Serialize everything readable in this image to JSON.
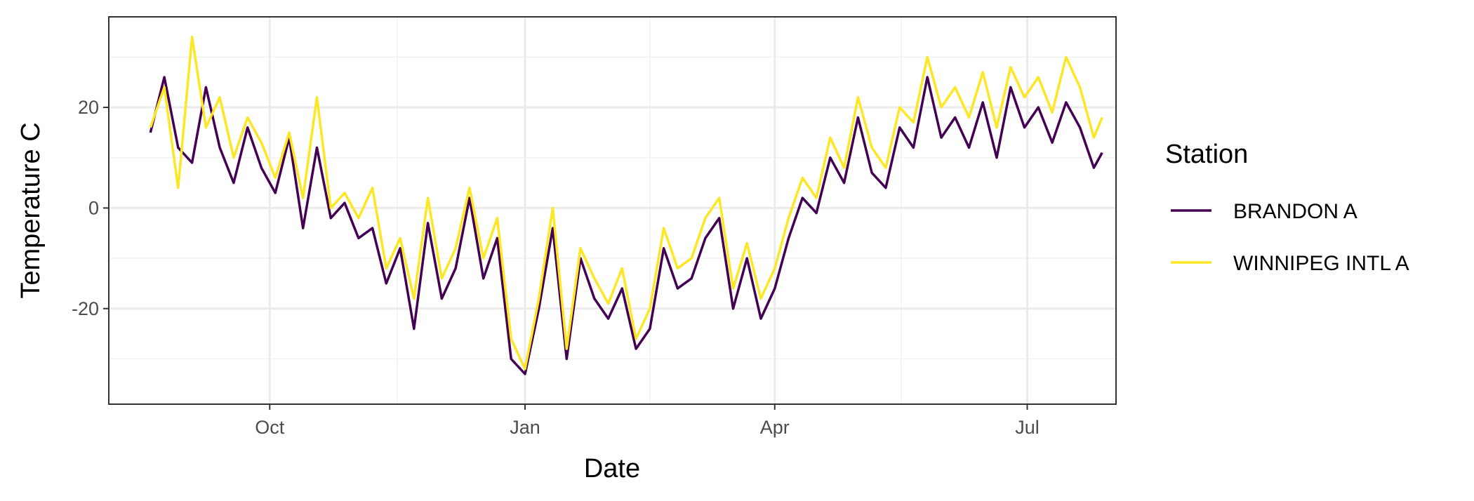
{
  "chart_data": {
    "type": "line",
    "xlabel": "Date",
    "ylabel": "Temperature C",
    "x_ticks": [
      {
        "label": "Oct",
        "date": "2020-10-01"
      },
      {
        "label": "Jan",
        "date": "2021-01-01"
      },
      {
        "label": "Apr",
        "date": "2021-04-01"
      },
      {
        "label": "Jul",
        "date": "2021-07-01"
      }
    ],
    "y_ticks": [
      -20,
      0,
      20
    ],
    "xlim": [
      "2020-08-04",
      "2021-08-02"
    ],
    "ylim": [
      -39,
      38
    ],
    "grid": true,
    "legend": {
      "title": "Station",
      "position": "right"
    },
    "series": [
      {
        "name": "BRANDON A",
        "color": "#440154",
        "x": [
          "2020-08-19",
          "2020-08-24",
          "2020-08-29",
          "2020-09-03",
          "2020-09-08",
          "2020-09-13",
          "2020-09-18",
          "2020-09-23",
          "2020-09-28",
          "2020-10-03",
          "2020-10-08",
          "2020-10-13",
          "2020-10-18",
          "2020-10-23",
          "2020-10-28",
          "2020-11-02",
          "2020-11-07",
          "2020-11-12",
          "2020-11-17",
          "2020-11-22",
          "2020-11-27",
          "2020-12-02",
          "2020-12-07",
          "2020-12-12",
          "2020-12-17",
          "2020-12-22",
          "2020-12-27",
          "2021-01-01",
          "2021-01-06",
          "2021-01-11",
          "2021-01-16",
          "2021-01-21",
          "2021-01-26",
          "2021-01-31",
          "2021-02-05",
          "2021-02-10",
          "2021-02-15",
          "2021-02-20",
          "2021-02-25",
          "2021-03-02",
          "2021-03-07",
          "2021-03-12",
          "2021-03-17",
          "2021-03-22",
          "2021-03-27",
          "2021-04-01",
          "2021-04-06",
          "2021-04-11",
          "2021-04-16",
          "2021-04-21",
          "2021-04-26",
          "2021-05-01",
          "2021-05-06",
          "2021-05-11",
          "2021-05-16",
          "2021-05-21",
          "2021-05-26",
          "2021-05-31",
          "2021-06-05",
          "2021-06-10",
          "2021-06-15",
          "2021-06-20",
          "2021-06-25",
          "2021-06-30",
          "2021-07-05",
          "2021-07-10",
          "2021-07-15",
          "2021-07-20",
          "2021-07-25",
          "2021-07-28"
        ],
        "y": [
          15,
          26,
          12,
          9,
          24,
          12,
          5,
          16,
          8,
          3,
          14,
          -4,
          12,
          -2,
          1,
          -6,
          -4,
          -15,
          -8,
          -24,
          -3,
          -18,
          -12,
          2,
          -14,
          -6,
          -30,
          -33,
          -20,
          -4,
          -30,
          -10,
          -18,
          -22,
          -16,
          -28,
          -24,
          -8,
          -16,
          -14,
          -6,
          -2,
          -20,
          -10,
          -22,
          -16,
          -6,
          2,
          -1,
          10,
          5,
          18,
          7,
          4,
          16,
          12,
          26,
          14,
          18,
          12,
          21,
          10,
          24,
          16,
          20,
          13,
          21,
          16,
          8,
          11
        ]
      },
      {
        "name": "WINNIPEG INTL A",
        "color": "#fde725",
        "x": [
          "2020-08-19",
          "2020-08-24",
          "2020-08-29",
          "2020-09-03",
          "2020-09-08",
          "2020-09-13",
          "2020-09-18",
          "2020-09-23",
          "2020-09-28",
          "2020-10-03",
          "2020-10-08",
          "2020-10-13",
          "2020-10-18",
          "2020-10-23",
          "2020-10-28",
          "2020-11-02",
          "2020-11-07",
          "2020-11-12",
          "2020-11-17",
          "2020-11-22",
          "2020-11-27",
          "2020-12-02",
          "2020-12-07",
          "2020-12-12",
          "2020-12-17",
          "2020-12-22",
          "2020-12-27",
          "2021-01-01",
          "2021-01-06",
          "2021-01-11",
          "2021-01-16",
          "2021-01-21",
          "2021-01-26",
          "2021-01-31",
          "2021-02-05",
          "2021-02-10",
          "2021-02-15",
          "2021-02-20",
          "2021-02-25",
          "2021-03-02",
          "2021-03-07",
          "2021-03-12",
          "2021-03-17",
          "2021-03-22",
          "2021-03-27",
          "2021-04-01",
          "2021-04-06",
          "2021-04-11",
          "2021-04-16",
          "2021-04-21",
          "2021-04-26",
          "2021-05-01",
          "2021-05-06",
          "2021-05-11",
          "2021-05-16",
          "2021-05-21",
          "2021-05-26",
          "2021-05-31",
          "2021-06-05",
          "2021-06-10",
          "2021-06-15",
          "2021-06-20",
          "2021-06-25",
          "2021-06-30",
          "2021-07-05",
          "2021-07-10",
          "2021-07-15",
          "2021-07-20",
          "2021-07-25",
          "2021-07-28"
        ],
        "y": [
          16,
          24,
          4,
          34,
          16,
          22,
          10,
          18,
          13,
          6,
          15,
          2,
          22,
          0,
          3,
          -2,
          4,
          -12,
          -6,
          -18,
          2,
          -14,
          -8,
          4,
          -10,
          -2,
          -26,
          -32,
          -18,
          0,
          -28,
          -8,
          -14,
          -19,
          -12,
          -26,
          -20,
          -4,
          -12,
          -10,
          -2,
          2,
          -16,
          -7,
          -18,
          -12,
          -2,
          6,
          2,
          14,
          8,
          22,
          12,
          8,
          20,
          17,
          30,
          20,
          24,
          18,
          27,
          16,
          28,
          22,
          26,
          19,
          30,
          24,
          14,
          18
        ]
      }
    ]
  }
}
